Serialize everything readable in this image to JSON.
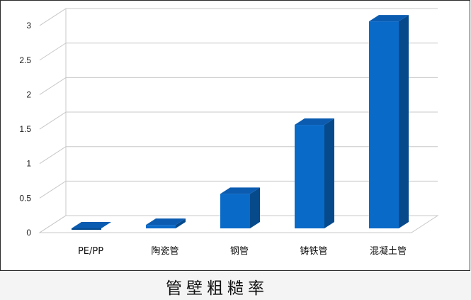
{
  "chart_data": {
    "type": "bar",
    "categories": [
      "PE/PP",
      "陶瓷管",
      "钢管",
      "铸铁管",
      "混凝土管"
    ],
    "values": [
      0,
      0.05,
      0.5,
      1.5,
      3.0
    ],
    "title": "",
    "xlabel": "",
    "ylabel": "",
    "ylim": [
      0,
      3
    ],
    "yticks": [
      "0",
      "0.5",
      "1",
      "1.5",
      "2",
      "2.5",
      "3"
    ],
    "grid": true,
    "style": "3d-column",
    "colors": {
      "bar_front": "#0a6ac8",
      "bar_top": "#0b5cb0",
      "bar_side": "#064a8c",
      "grid": "#c8c8c8",
      "floor": "#c8c8c8"
    }
  },
  "caption": "管壁粗糙率"
}
